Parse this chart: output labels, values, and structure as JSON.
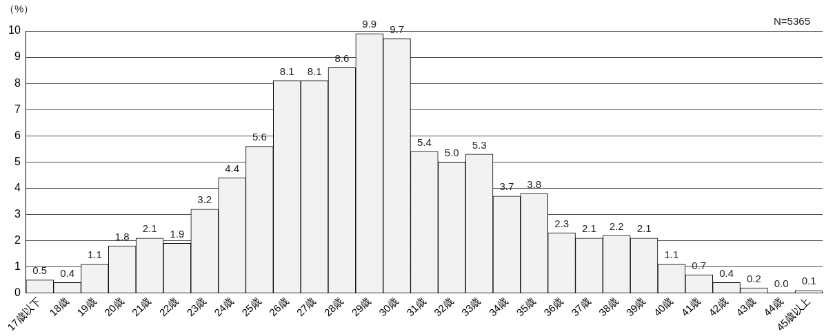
{
  "chart_data": {
    "type": "bar",
    "ylabel": "（%）",
    "annotations": [
      "N=5365"
    ],
    "categories": [
      "17歳以下",
      "18歳",
      "19歳",
      "20歳",
      "21歳",
      "22歳",
      "23歳",
      "24歳",
      "25歳",
      "26歳",
      "27歳",
      "28歳",
      "29歳",
      "30歳",
      "31歳",
      "32歳",
      "33歳",
      "34歳",
      "35歳",
      "36歳",
      "37歳",
      "38歳",
      "39歳",
      "40歳",
      "41歳",
      "42歳",
      "43歳",
      "44歳",
      "45歳以上"
    ],
    "values": [
      0.5,
      0.4,
      1.1,
      1.8,
      2.1,
      1.9,
      3.2,
      4.4,
      5.6,
      8.1,
      8.1,
      8.6,
      9.9,
      9.7,
      5.4,
      5.0,
      5.3,
      3.7,
      3.8,
      2.3,
      2.1,
      2.2,
      2.1,
      1.1,
      0.7,
      0.4,
      0.2,
      0.0,
      0.1
    ],
    "value_labels": [
      "0.5",
      "0.4",
      "1.1",
      "1.8",
      "2.1",
      "1.9",
      "3.2",
      "4.4",
      "5.6",
      "8.1",
      "8.1",
      "8.6",
      "9.9",
      "9.7",
      "5.4",
      "5.0",
      "5.3",
      "3.7",
      "3.8",
      "2.3",
      "2.1",
      "2.2",
      "2.1",
      "1.1",
      "0.7",
      "0.4",
      "0.2",
      "0.0",
      "0.1"
    ],
    "color": "#f2f2f2",
    "ylim": [
      0,
      10
    ],
    "yticks": [
      0,
      1,
      2,
      3,
      4,
      5,
      6,
      7,
      8,
      9,
      10
    ],
    "grid": "y",
    "legend": false
  }
}
